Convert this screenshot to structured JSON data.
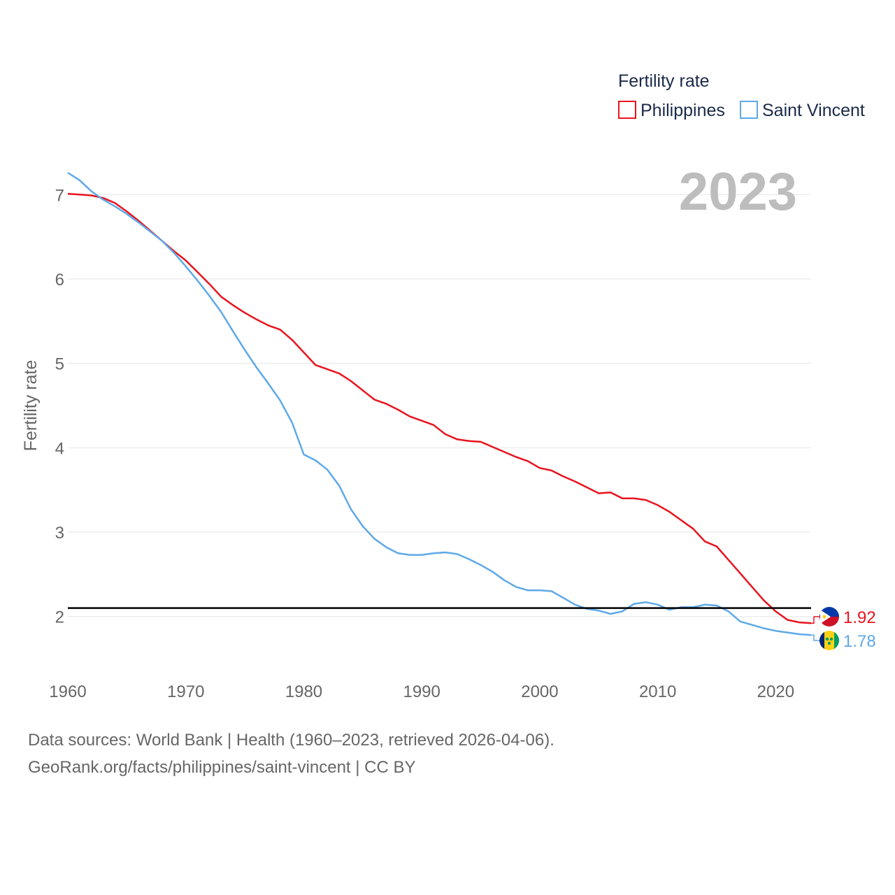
{
  "chart_data": {
    "type": "line",
    "legend_title": "Fertility rate",
    "ylabel": "Fertility rate",
    "xlabel": "",
    "year_label": "2023",
    "xlim": [
      1960,
      2023
    ],
    "ylim": [
      1.5,
      7.5
    ],
    "x_ticks": [
      1960,
      1970,
      1980,
      1990,
      2000,
      2010,
      2020
    ],
    "y_ticks": [
      2,
      3,
      4,
      5,
      6,
      7
    ],
    "reference_line": 2.1,
    "x": [
      1960,
      1961,
      1962,
      1963,
      1964,
      1965,
      1966,
      1967,
      1968,
      1969,
      1970,
      1971,
      1972,
      1973,
      1974,
      1975,
      1976,
      1977,
      1978,
      1979,
      1980,
      1981,
      1982,
      1983,
      1984,
      1985,
      1986,
      1987,
      1988,
      1989,
      1990,
      1991,
      1992,
      1993,
      1994,
      1995,
      1996,
      1997,
      1998,
      1999,
      2000,
      2001,
      2002,
      2003,
      2004,
      2005,
      2006,
      2007,
      2008,
      2009,
      2010,
      2011,
      2012,
      2013,
      2014,
      2015,
      2016,
      2017,
      2018,
      2019,
      2020,
      2021,
      2022,
      2023
    ],
    "series": [
      {
        "name": "Philippines",
        "color": "#e8141e",
        "end_label": "1.92",
        "values": [
          7.01,
          7.0,
          6.99,
          6.96,
          6.9,
          6.8,
          6.69,
          6.57,
          6.45,
          6.33,
          6.22,
          6.08,
          5.94,
          5.79,
          5.69,
          5.6,
          5.52,
          5.45,
          5.4,
          5.28,
          5.13,
          4.98,
          4.93,
          4.88,
          4.79,
          4.68,
          4.57,
          4.52,
          4.45,
          4.37,
          4.32,
          4.27,
          4.16,
          4.1,
          4.08,
          4.07,
          4.01,
          3.95,
          3.89,
          3.84,
          3.76,
          3.73,
          3.66,
          3.6,
          3.53,
          3.46,
          3.47,
          3.4,
          3.4,
          3.38,
          3.32,
          3.24,
          3.14,
          3.04,
          2.89,
          2.83,
          2.67,
          2.51,
          2.35,
          2.19,
          2.06,
          1.96,
          1.93,
          1.92
        ]
      },
      {
        "name": "Saint Vincent",
        "color": "#5ea9e8",
        "end_label": "1.78",
        "values": [
          7.26,
          7.17,
          7.04,
          6.94,
          6.86,
          6.77,
          6.67,
          6.56,
          6.45,
          6.31,
          6.15,
          5.98,
          5.8,
          5.61,
          5.38,
          5.16,
          4.95,
          4.76,
          4.56,
          4.3,
          3.92,
          3.85,
          3.74,
          3.55,
          3.27,
          3.07,
          2.92,
          2.82,
          2.75,
          2.73,
          2.73,
          2.75,
          2.76,
          2.74,
          2.68,
          2.61,
          2.53,
          2.43,
          2.35,
          2.31,
          2.31,
          2.3,
          2.22,
          2.14,
          2.09,
          2.07,
          2.03,
          2.06,
          2.15,
          2.17,
          2.14,
          2.08,
          2.11,
          2.11,
          2.14,
          2.13,
          2.06,
          1.94,
          1.9,
          1.86,
          1.83,
          1.81,
          1.79,
          1.78
        ]
      }
    ]
  },
  "footer": {
    "line1": "Data sources: World Bank | Health (1960–2023, retrieved 2026-04-06).",
    "line2": "GeoRank.org/facts/philippines/saint-vincent | CC BY"
  }
}
